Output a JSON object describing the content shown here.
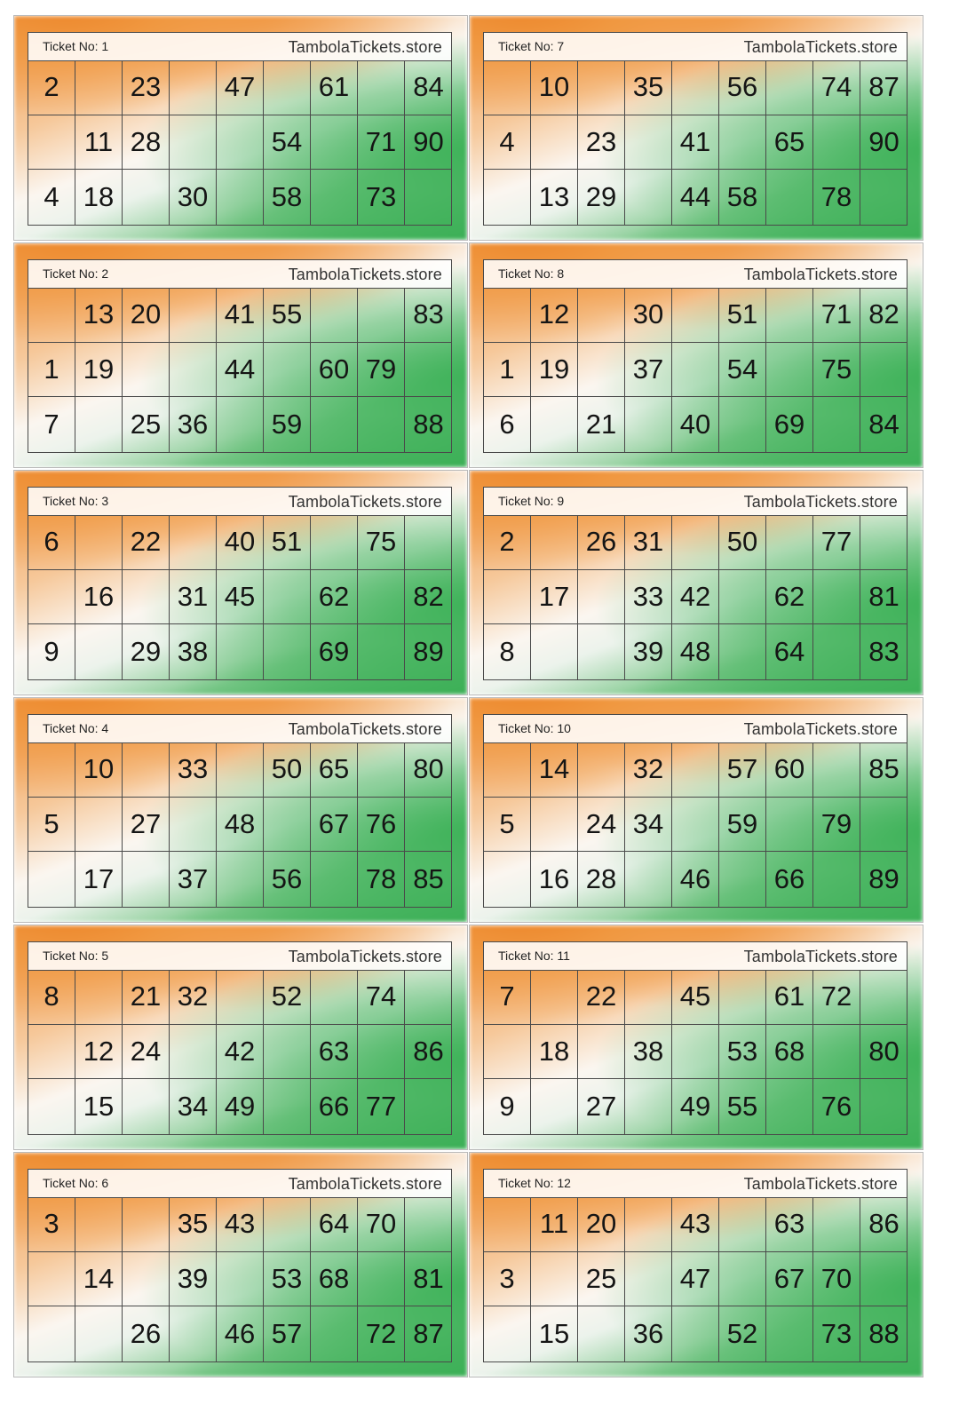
{
  "site": "TambolaTickets.store",
  "tickets": [
    {
      "label": "Ticket No: 1",
      "rows": [
        [
          "2",
          "",
          "23",
          "",
          "47",
          "",
          "61",
          "",
          "84"
        ],
        [
          "",
          "11",
          "28",
          "",
          "",
          "54",
          "",
          "71",
          "90"
        ],
        [
          "4",
          "18",
          "",
          "30",
          "",
          "58",
          "",
          "73",
          ""
        ]
      ]
    },
    {
      "label": "Ticket No: 7",
      "rows": [
        [
          "",
          "10",
          "",
          "35",
          "",
          "56",
          "",
          "74",
          "87"
        ],
        [
          "4",
          "",
          "23",
          "",
          "41",
          "",
          "65",
          "",
          "90"
        ],
        [
          "",
          "13",
          "29",
          "",
          "44",
          "58",
          "",
          "78",
          ""
        ]
      ]
    },
    {
      "label": "Ticket No: 2",
      "rows": [
        [
          "",
          "13",
          "20",
          "",
          "41",
          "55",
          "",
          "",
          "83"
        ],
        [
          "1",
          "19",
          "",
          "",
          "44",
          "",
          "60",
          "79",
          ""
        ],
        [
          "7",
          "",
          "25",
          "36",
          "",
          "59",
          "",
          "",
          "88"
        ]
      ]
    },
    {
      "label": "Ticket No: 8",
      "rows": [
        [
          "",
          "12",
          "",
          "30",
          "",
          "51",
          "",
          "71",
          "82"
        ],
        [
          "1",
          "19",
          "",
          "37",
          "",
          "54",
          "",
          "75",
          ""
        ],
        [
          "6",
          "",
          "21",
          "",
          "40",
          "",
          "69",
          "",
          "84"
        ]
      ]
    },
    {
      "label": "Ticket No: 3",
      "rows": [
        [
          "6",
          "",
          "22",
          "",
          "40",
          "51",
          "",
          "75",
          ""
        ],
        [
          "",
          "16",
          "",
          "31",
          "45",
          "",
          "62",
          "",
          "82"
        ],
        [
          "9",
          "",
          "29",
          "38",
          "",
          "",
          "69",
          "",
          "89"
        ]
      ]
    },
    {
      "label": "Ticket No: 9",
      "rows": [
        [
          "2",
          "",
          "26",
          "31",
          "",
          "50",
          "",
          "77",
          ""
        ],
        [
          "",
          "17",
          "",
          "33",
          "42",
          "",
          "62",
          "",
          "81"
        ],
        [
          "8",
          "",
          "",
          "39",
          "48",
          "",
          "64",
          "",
          "83"
        ]
      ]
    },
    {
      "label": "Ticket No: 4",
      "rows": [
        [
          "",
          "10",
          "",
          "33",
          "",
          "50",
          "65",
          "",
          "80"
        ],
        [
          "5",
          "",
          "27",
          "",
          "48",
          "",
          "67",
          "76",
          ""
        ],
        [
          "",
          "17",
          "",
          "37",
          "",
          "56",
          "",
          "78",
          "85"
        ]
      ]
    },
    {
      "label": "Ticket No: 10",
      "rows": [
        [
          "",
          "14",
          "",
          "32",
          "",
          "57",
          "60",
          "",
          "85"
        ],
        [
          "5",
          "",
          "24",
          "34",
          "",
          "59",
          "",
          "79",
          ""
        ],
        [
          "",
          "16",
          "28",
          "",
          "46",
          "",
          "66",
          "",
          "89"
        ]
      ]
    },
    {
      "label": "Ticket No: 5",
      "rows": [
        [
          "8",
          "",
          "21",
          "32",
          "",
          "52",
          "",
          "74",
          ""
        ],
        [
          "",
          "12",
          "24",
          "",
          "42",
          "",
          "63",
          "",
          "86"
        ],
        [
          "",
          "15",
          "",
          "34",
          "49",
          "",
          "66",
          "77",
          ""
        ]
      ]
    },
    {
      "label": "Ticket No: 11",
      "rows": [
        [
          "7",
          "",
          "22",
          "",
          "45",
          "",
          "61",
          "72",
          ""
        ],
        [
          "",
          "18",
          "",
          "38",
          "",
          "53",
          "68",
          "",
          "80"
        ],
        [
          "9",
          "",
          "27",
          "",
          "49",
          "55",
          "",
          "76",
          ""
        ]
      ]
    },
    {
      "label": "Ticket No: 6",
      "rows": [
        [
          "3",
          "",
          "",
          "35",
          "43",
          "",
          "64",
          "70",
          ""
        ],
        [
          "",
          "14",
          "",
          "39",
          "",
          "53",
          "68",
          "",
          "81"
        ],
        [
          "",
          "",
          "26",
          "",
          "46",
          "57",
          "",
          "72",
          "87"
        ]
      ]
    },
    {
      "label": "Ticket No: 12",
      "rows": [
        [
          "",
          "11",
          "20",
          "",
          "43",
          "",
          "63",
          "",
          "86"
        ],
        [
          "3",
          "",
          "25",
          "",
          "47",
          "",
          "67",
          "70",
          ""
        ],
        [
          "",
          "15",
          "",
          "36",
          "",
          "52",
          "",
          "73",
          "88"
        ]
      ]
    }
  ]
}
